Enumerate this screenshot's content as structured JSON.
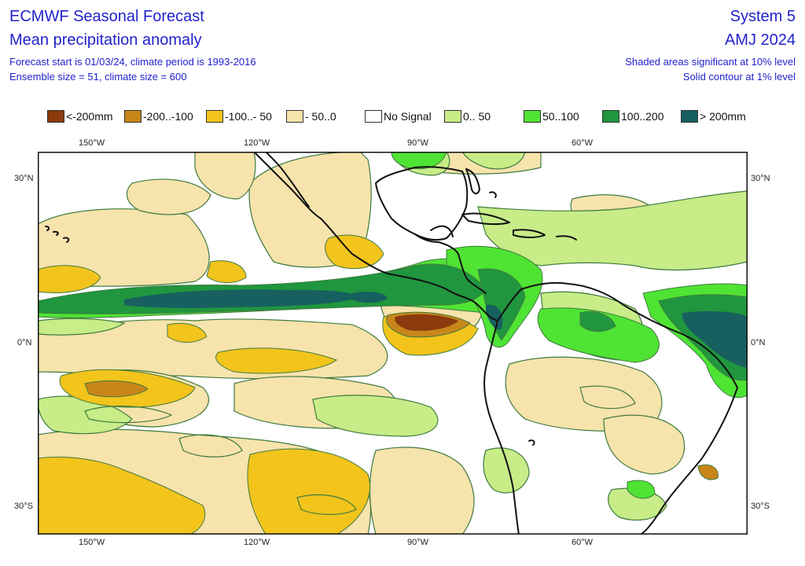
{
  "header": {
    "title": "ECMWF Seasonal Forecast",
    "subtitle": "Mean precipitation anomaly",
    "forecast_info": "Forecast start is 01/03/24, climate period is 1993-2016",
    "ensemble_info": "Ensemble size = 51, climate size = 600",
    "system": "System 5",
    "period": "AMJ 2024",
    "significance_10": "Shaded areas significant at 10% level",
    "significance_1": "Solid contour at 1% level"
  },
  "legend": [
    {
      "label": "<-200mm",
      "color": "#8b3a0e"
    },
    {
      "label": "-200..-100",
      "color": "#c8861a"
    },
    {
      "label": "-100..- 50",
      "color": "#f2c41c"
    },
    {
      "label": "- 50..0",
      "color": "#f7e3ac"
    },
    {
      "label": "No Signal",
      "color": "#ffffff"
    },
    {
      "label": "0.. 50",
      "color": "#c7ec88"
    },
    {
      "label": "50..100",
      "color": "#4fe334"
    },
    {
      "label": "100..200",
      "color": "#20963e"
    },
    {
      "label": "> 200mm",
      "color": "#17605f"
    }
  ],
  "axes": {
    "lon_labels": [
      "150°W",
      "120°W",
      "90°W",
      "60°W"
    ],
    "lat_labels": [
      "30°N",
      "0°N",
      "30°S"
    ]
  },
  "colors": {
    "land_outline": "#111111",
    "contour": "#3f7a3f",
    "header_text": "#2222cc"
  }
}
